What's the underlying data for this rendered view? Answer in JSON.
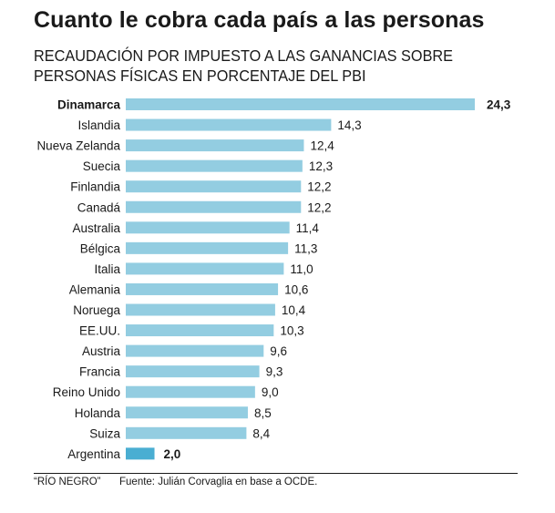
{
  "chart_data": {
    "type": "bar",
    "orientation": "horizontal",
    "title": "Cuanto le cobra cada país a las personas",
    "subtitle": "RECAUDACIÓN POR IMPUESTO A LAS GANANCIAS SOBRE PERSONAS FÍSICAS EN PORCENTAJE DEL PBI",
    "xlabel": "",
    "ylabel": "",
    "grid": false,
    "categories": [
      "Dinamarca",
      "Islandia",
      "Nueva Zelanda",
      "Suecia",
      "Finlandia",
      "Canadá",
      "Australia",
      "Bélgica",
      "Italia",
      "Alemania",
      "Noruega",
      "EE.UU.",
      "Austria",
      "Francia",
      "Reino Unido",
      "Holanda",
      "Suiza",
      "Argentina"
    ],
    "values": [
      24.3,
      14.3,
      12.4,
      12.3,
      12.2,
      12.2,
      11.4,
      11.3,
      11.0,
      10.6,
      10.4,
      10.3,
      9.6,
      9.3,
      9.0,
      8.5,
      8.4,
      2.0
    ],
    "value_labels": [
      "24,3",
      "14,3",
      "12,4",
      "12,3",
      "12,2",
      "12,2",
      "11,4",
      "11,3",
      "11,0",
      "10,6",
      "10,4",
      "10,3",
      "9,6",
      "9,3",
      "9,0",
      "8,5",
      "8,4",
      "2,0"
    ],
    "highlighted": [
      "Dinamarca",
      "Argentina"
    ],
    "xlim": [
      0,
      24.3
    ],
    "colors": {
      "default_bar": "#93cde1",
      "highlight_bar": "#4aaed2",
      "text": "#1a1a1a"
    }
  },
  "footer": {
    "credit": "“RÍO NEGRO”",
    "source": "Fuente: Julián Corvaglia en base a OCDE."
  }
}
